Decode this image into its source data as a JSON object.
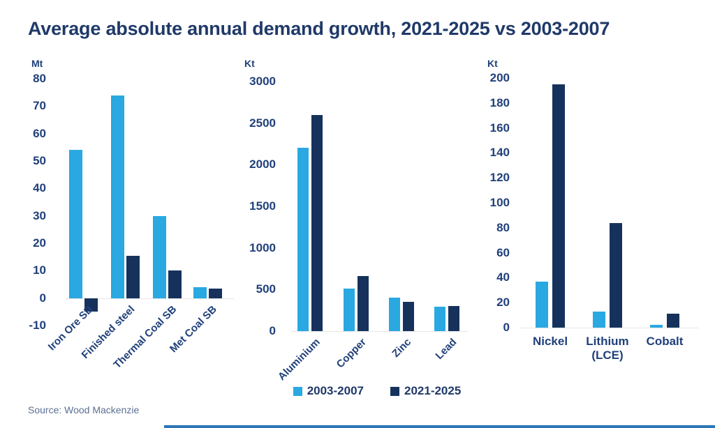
{
  "title": "Average absolute annual demand growth, 2021-2025 vs 2003-2007",
  "source": "Source: Wood Mackenzie",
  "colors": {
    "accent_light_blue": "#29A8E1",
    "accent_navy": "#16325C",
    "title_text": "#1F3968",
    "axis_text": "#20407A",
    "source_text": "#5C6F93",
    "baseline_gray": "#CFCFCF",
    "footer_rule_blue": "#2E75B6"
  },
  "legend": [
    {
      "label": "2003-2007",
      "color": "#29A8E1"
    },
    {
      "label": "2021-2025",
      "color": "#16325C"
    }
  ],
  "chart_data": [
    {
      "type": "bar",
      "unit": "Mt",
      "ylabel": "Mt",
      "categories": [
        "Iron Ore SB",
        "Finished steel",
        "Thermal Coal SB",
        "Met Coal SB"
      ],
      "series": [
        {
          "name": "2003-2007",
          "values": [
            54,
            74,
            30,
            4
          ]
        },
        {
          "name": "2021-2025",
          "values": [
            -5,
            15.5,
            10,
            3.5
          ]
        }
      ],
      "ylim": [
        -10,
        80
      ],
      "yticks": [
        80,
        70,
        60,
        50,
        40,
        30,
        20,
        10,
        0,
        -10
      ],
      "grid": false,
      "label_rotation": 45
    },
    {
      "type": "bar",
      "unit": "Kt",
      "ylabel": "Kt",
      "categories": [
        "Aluminium",
        "Copper",
        "Zinc",
        "Lead"
      ],
      "series": [
        {
          "name": "2003-2007",
          "values": [
            2200,
            510,
            400,
            290
          ]
        },
        {
          "name": "2021-2025",
          "values": [
            2600,
            660,
            350,
            300
          ]
        }
      ],
      "ylim": [
        0,
        3000
      ],
      "yticks": [
        3000,
        2500,
        2000,
        1500,
        1000,
        500,
        0
      ],
      "grid": false,
      "label_rotation": 45
    },
    {
      "type": "bar",
      "unit": "Kt",
      "ylabel": "Kt",
      "categories": [
        "Nickel",
        "Lithium (LCE)",
        "Cobalt"
      ],
      "series": [
        {
          "name": "2003-2007",
          "values": [
            37,
            13,
            2
          ]
        },
        {
          "name": "2021-2025",
          "values": [
            195,
            84,
            11
          ]
        }
      ],
      "ylim": [
        0,
        200
      ],
      "yticks": [
        200,
        180,
        160,
        140,
        120,
        100,
        80,
        60,
        40,
        20,
        0
      ],
      "grid": false,
      "label_rotation": 0
    }
  ]
}
